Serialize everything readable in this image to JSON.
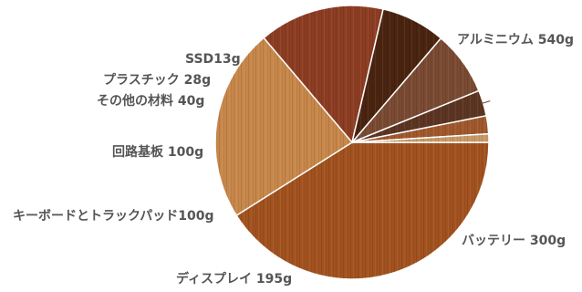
{
  "chart_data": {
    "type": "pie",
    "title": "",
    "slices": [
      {
        "label": "アルミニウム 540g",
        "name": "アルミニウム",
        "value": 540,
        "color": "#a2521f"
      },
      {
        "label": "バッテリー 300g",
        "name": "バッテリー",
        "value": 300,
        "color": "#c7874a"
      },
      {
        "label": "ディスプレイ 195g",
        "name": "ディスプレイ",
        "value": 195,
        "color": "#8c3d22"
      },
      {
        "label": "キーボードとトラックパッド100g",
        "name": "キーボードとトラックパッド",
        "value": 100,
        "color": "#4a2410"
      },
      {
        "label": "回路基板 100g",
        "name": "回路基板",
        "value": 100,
        "color": "#7a4a32"
      },
      {
        "label": "その他の材料 40g",
        "name": "その他の材料",
        "value": 40,
        "color": "#5c3522"
      },
      {
        "label": "プラスチック 28g",
        "name": "プラスチック",
        "value": 28,
        "color": "#a0582c"
      },
      {
        "label": "SSD13g",
        "name": "SSD",
        "value": 13,
        "color": "#c89868"
      }
    ]
  }
}
